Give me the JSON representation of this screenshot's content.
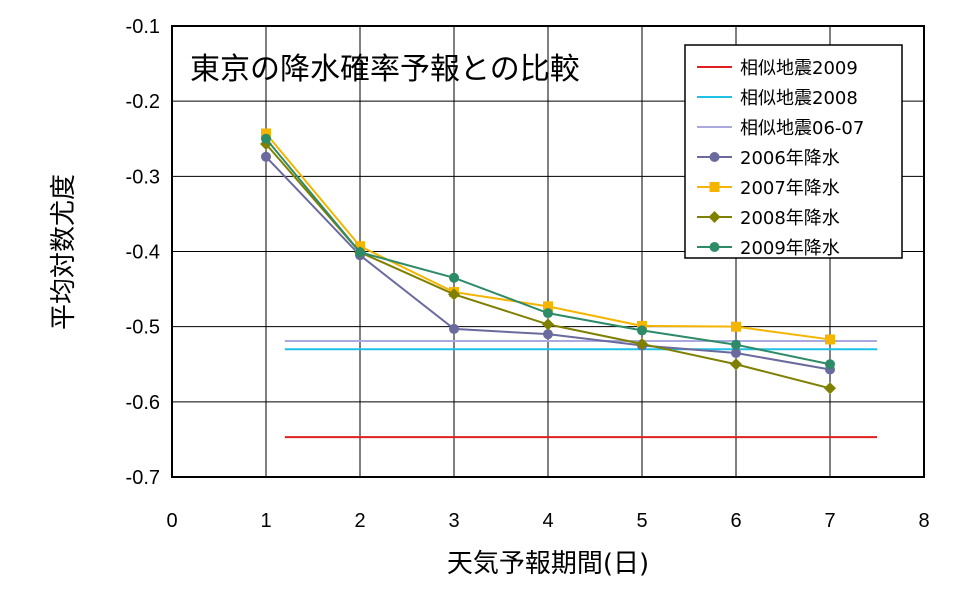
{
  "chart_data": {
    "type": "line",
    "title": "東京の降水確率予報との比較",
    "xlabel": "天気予報期間(日)",
    "ylabel": "平均対数尤度",
    "xlim": [
      0,
      8
    ],
    "ylim": [
      -0.7,
      -0.1
    ],
    "x_ticks": [
      0,
      1,
      2,
      3,
      4,
      5,
      6,
      7,
      8
    ],
    "y_ticks": [
      -0.1,
      -0.2,
      -0.3,
      -0.4,
      -0.5,
      -0.6,
      -0.7
    ],
    "grid": true,
    "legend_position": "top-right",
    "reference_lines": [
      {
        "name": "相似地震2009",
        "y": -0.647,
        "x_range": [
          1.2,
          7.5
        ],
        "color": "#e0201f"
      },
      {
        "name": "相似地震2008",
        "y": -0.53,
        "x_range": [
          1.2,
          7.5
        ],
        "color": "#1fc1e6"
      },
      {
        "name": "相似地震06-07",
        "y": -0.519,
        "x_range": [
          1.2,
          7.5
        ],
        "color": "#a9a9e0"
      }
    ],
    "series": [
      {
        "name": "2006年降水",
        "color": "#6a6a9e",
        "marker": "circle",
        "x": [
          1,
          2,
          3,
          4,
          5,
          6,
          7
        ],
        "y": [
          -0.274,
          -0.405,
          -0.503,
          -0.51,
          -0.525,
          -0.535,
          -0.557
        ]
      },
      {
        "name": "2007年降水",
        "color": "#f5b400",
        "marker": "square",
        "x": [
          1,
          2,
          3,
          4,
          5,
          6,
          7
        ],
        "y": [
          -0.243,
          -0.393,
          -0.454,
          -0.473,
          -0.499,
          -0.5,
          -0.517
        ]
      },
      {
        "name": "2008年降水",
        "color": "#808000",
        "marker": "diamond",
        "x": [
          1,
          2,
          3,
          4,
          5,
          6,
          7
        ],
        "y": [
          -0.257,
          -0.401,
          -0.457,
          -0.497,
          -0.523,
          -0.55,
          -0.582
        ]
      },
      {
        "name": "2009年降水",
        "color": "#2e8b68",
        "marker": "circle",
        "x": [
          1,
          2,
          3,
          4,
          5,
          6,
          7
        ],
        "y": [
          -0.25,
          -0.401,
          -0.435,
          -0.482,
          -0.505,
          -0.524,
          -0.55
        ]
      }
    ]
  }
}
